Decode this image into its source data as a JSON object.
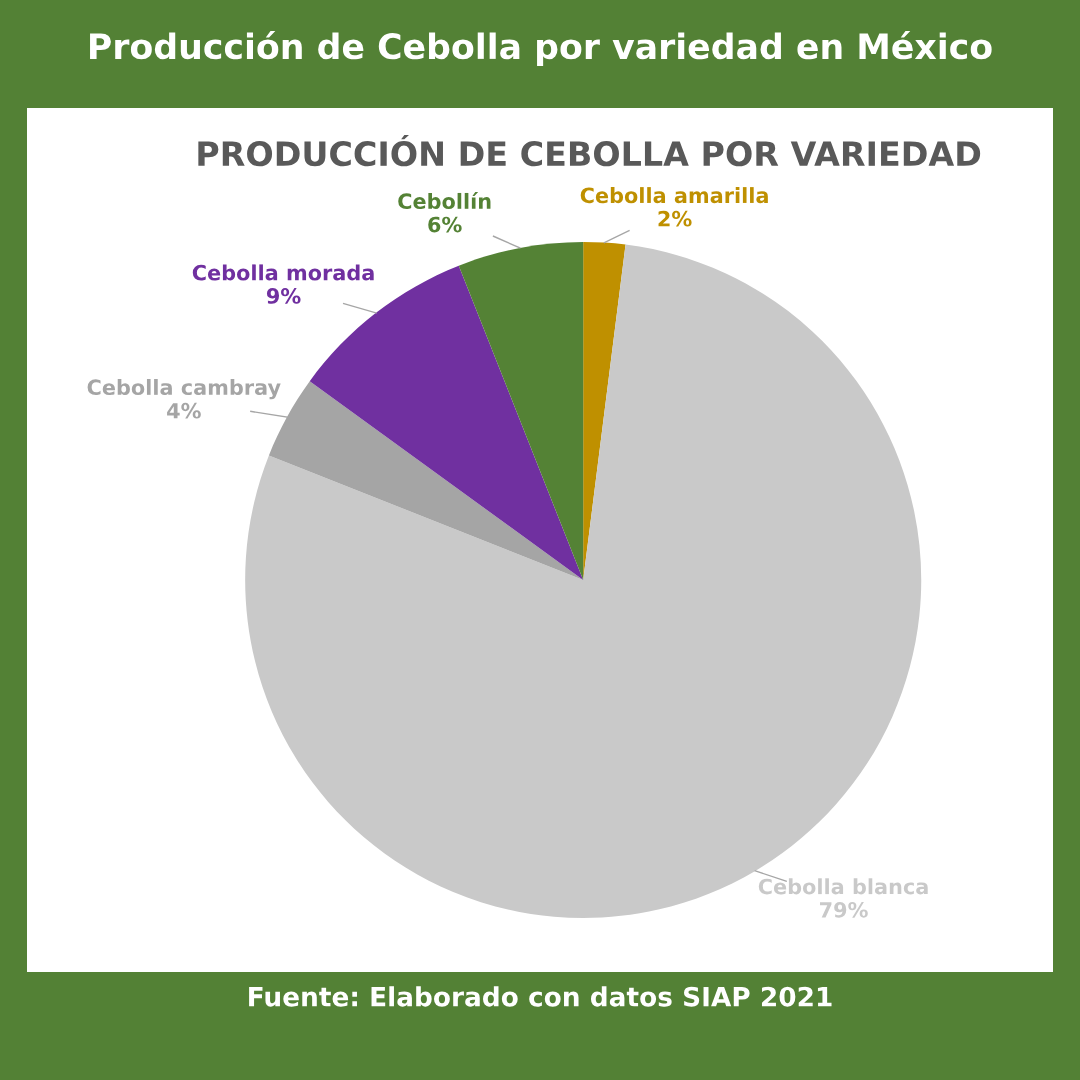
{
  "chart_data": {
    "type": "pie",
    "title": "Producción de Cebolla por variedad en México",
    "subtitle": "PRODUCCIÓN DE CEBOLLA POR VARIEDAD",
    "categories": [
      "Cebolla amarilla",
      "Cebolla blanca",
      "Cebolla cambray",
      "Cebolla morada",
      "Cebollín"
    ],
    "values": [
      2,
      79,
      4,
      9,
      6
    ],
    "colors": [
      "#bf9000",
      "#c9c9c9",
      "#a5a5a5",
      "#7030a0",
      "#548235"
    ],
    "value_labels": [
      "2%",
      "79%",
      "4%",
      "9%",
      "6%"
    ],
    "annotations": [
      "Fuente: Elaborado con datos SIAP 2021"
    ]
  }
}
